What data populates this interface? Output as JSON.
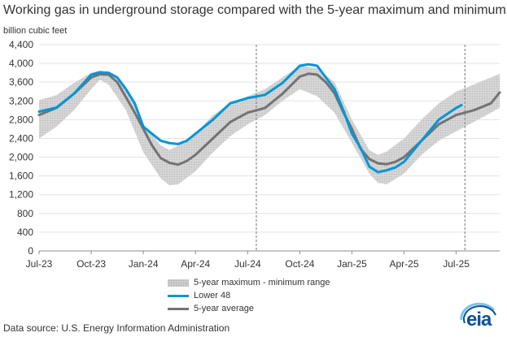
{
  "chart_data": {
    "type": "area",
    "title": "Working gas in underground  storage compared with the 5-year maximum and minimum",
    "ylabel": "billion cubic feet",
    "xlabel": "",
    "ylim": [
      0,
      4400
    ],
    "yticks": [
      0,
      400,
      800,
      1200,
      1600,
      2000,
      2400,
      2800,
      3200,
      3600,
      4000,
      4400
    ],
    "ytick_labels": [
      "0",
      "400",
      "800",
      "1,200",
      "1,600",
      "2,000",
      "2,400",
      "2,800",
      "3,200",
      "3,600",
      "4,000",
      "4,400"
    ],
    "x_unit": "months since Jul-23",
    "xlim": [
      0,
      26.5
    ],
    "xticks": [
      0,
      3,
      6,
      9,
      12,
      15,
      18,
      21,
      24
    ],
    "xtick_labels": [
      "Jul-23",
      "Oct-23",
      "Jan-24",
      "Apr-24",
      "Jul-24",
      "Oct-24",
      "Jan-25",
      "Apr-25",
      "Jul-25"
    ],
    "vlines": [
      12.5,
      24.5
    ],
    "grid": true,
    "legend_position": "bottom-center",
    "series": [
      {
        "name": "5-year maximum - minimum range",
        "kind": "band",
        "color": "#cfcfcf",
        "x": [
          0,
          1,
          2,
          3,
          3.5,
          4,
          5,
          6,
          7,
          7.5,
          8,
          9,
          10,
          11,
          12,
          13,
          14,
          15,
          16,
          17,
          18,
          19,
          19.5,
          20,
          21,
          22,
          23,
          24,
          25,
          26,
          26.5
        ],
        "high": [
          3220,
          3320,
          3580,
          3800,
          3850,
          3820,
          3500,
          2700,
          2250,
          2150,
          2250,
          2500,
          2900,
          3150,
          3300,
          3450,
          3700,
          3950,
          3900,
          3600,
          2800,
          2150,
          2050,
          2120,
          2400,
          2800,
          3150,
          3400,
          3550,
          3700,
          3780
        ],
        "low": [
          2400,
          2650,
          3000,
          3450,
          3650,
          3550,
          3000,
          2100,
          1550,
          1400,
          1420,
          1700,
          2100,
          2450,
          2700,
          2900,
          3200,
          3450,
          3300,
          2950,
          2300,
          1650,
          1450,
          1420,
          1650,
          2050,
          2350,
          2550,
          2750,
          2950,
          3050
        ]
      },
      {
        "name": "Lower 48",
        "kind": "line",
        "color": "#0096d7",
        "x": [
          0,
          1,
          2,
          3,
          3.5,
          4,
          4.5,
          5,
          5.5,
          6,
          6.5,
          7,
          7.5,
          8,
          8.5,
          9,
          10,
          11,
          12,
          13,
          14,
          15,
          15.5,
          16,
          16.5,
          17,
          17.5,
          18,
          18.5,
          19,
          19.5,
          20,
          20.5,
          21,
          22,
          23,
          24,
          24.3
        ],
        "values": [
          2970,
          3060,
          3350,
          3760,
          3810,
          3800,
          3700,
          3450,
          3150,
          2650,
          2500,
          2350,
          2300,
          2280,
          2350,
          2500,
          2800,
          3150,
          3260,
          3330,
          3580,
          3950,
          3980,
          3950,
          3700,
          3450,
          3000,
          2500,
          2200,
          1800,
          1680,
          1720,
          1780,
          1900,
          2350,
          2800,
          3050,
          3110
        ]
      },
      {
        "name": "5-year average",
        "kind": "line",
        "color": "#737373",
        "x": [
          0,
          1,
          2,
          3,
          3.5,
          4,
          4.5,
          5,
          5.5,
          6,
          6.5,
          7,
          7.5,
          8,
          8.5,
          9,
          10,
          11,
          12,
          13,
          14,
          15,
          15.5,
          16,
          16.5,
          17,
          17.5,
          18,
          18.5,
          19,
          19.5,
          20,
          20.5,
          21,
          22,
          23,
          24,
          25,
          26,
          26.5
        ],
        "values": [
          2900,
          3050,
          3350,
          3700,
          3770,
          3760,
          3600,
          3280,
          2950,
          2600,
          2250,
          1980,
          1880,
          1840,
          1920,
          2050,
          2400,
          2750,
          2950,
          3050,
          3350,
          3720,
          3780,
          3760,
          3600,
          3360,
          2960,
          2600,
          2180,
          1960,
          1870,
          1850,
          1900,
          2000,
          2350,
          2700,
          2900,
          3000,
          3150,
          3380
        ]
      }
    ]
  },
  "source_text": "Data source:  U.S. Energy Information Administration",
  "logo_text": "eia"
}
